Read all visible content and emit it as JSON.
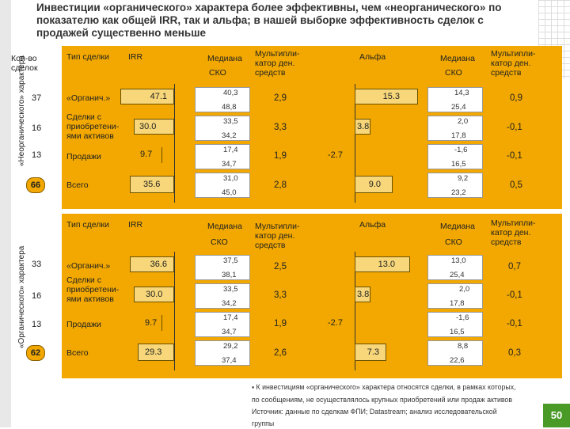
{
  "title": "Инвестиции «органического» характера более эффективны, чем «неорганического» по показателю как общей IRR, так и альфа; в нашей выборке эффективность сделок с продажей существенно меньше",
  "top_left_header": "Кол-во сделок",
  "columns": {
    "type": "Тип сделки",
    "irr": "IRR",
    "median": "Медиана",
    "sko": "СКО",
    "multiplier": "Мультипли-катор ден. средств",
    "alpha": "Альфа",
    "median2": "Медиана",
    "sko2": "СКО",
    "multiplier2": "Мультипли-катор ден. средств"
  },
  "sections": [
    {
      "side_label": "«Неорганического» характера",
      "rows": [
        {
          "count": "37",
          "type": "«Органич.»",
          "irr": "47.1",
          "median": "40,3",
          "sko": "48,8",
          "mult": "2,9",
          "alpha": "15.3",
          "a_median": "14,3",
          "a_sko": "25,4",
          "a_mult": "0,9"
        },
        {
          "count": "16",
          "type": "Сделки с приобретени-ями активов",
          "irr": "30.0",
          "median": "33,5",
          "sko": "34,2",
          "mult": "3,3",
          "alpha": "3.8",
          "a_median": "2,0",
          "a_sko": "17,8",
          "a_mult": "-0,1"
        },
        {
          "count": "13",
          "type": "Продажи",
          "irr": "9.7",
          "median": "17,4",
          "sko": "34,7",
          "mult": "1,9",
          "alpha": "-2.7",
          "a_median": "-1,6",
          "a_sko": "16,5",
          "a_mult": "-0,1"
        },
        {
          "count": "66",
          "type": "Всего",
          "irr": "35.6",
          "median": "31,0",
          "sko": "45,0",
          "mult": "2,8",
          "alpha": "9.0",
          "a_median": "9,2",
          "a_sko": "23,2",
          "a_mult": "0,5"
        }
      ]
    },
    {
      "side_label": "«Органического» характера",
      "rows": [
        {
          "count": "33",
          "type": "«Органич.»",
          "irr": "36.6",
          "median": "37,5",
          "sko": "38,1",
          "mult": "2,5",
          "alpha": "13.0",
          "a_median": "13,0",
          "a_sko": "25,4",
          "a_mult": "0,7"
        },
        {
          "count": "16",
          "type": "Сделки с приобретени-ями активов",
          "irr": "30.0",
          "median": "33,5",
          "sko": "34,2",
          "mult": "3,3",
          "alpha": "3.8",
          "a_median": "2,0",
          "a_sko": "17,8",
          "a_mult": "-0,1"
        },
        {
          "count": "13",
          "type": "Продажи",
          "irr": "9.7",
          "median": "17,4",
          "sko": "34,7",
          "mult": "1,9",
          "alpha": "-2.7",
          "a_median": "-1,6",
          "a_sko": "16,5",
          "a_mult": "-0,1"
        },
        {
          "count": "62",
          "type": "Всего",
          "irr": "29.3",
          "median": "29,2",
          "sko": "37,4",
          "mult": "2,6",
          "alpha": "7.3",
          "a_median": "8,8",
          "a_sko": "22,6",
          "a_mult": "0,3"
        }
      ]
    }
  ],
  "footnote": {
    "line1": "▪  К инвестициям «органического» характера относятся сделки, в рамках которых,",
    "line2": "по сообщениям, не осуществлялось крупных приобретений или продаж активов",
    "line3": "Источник: данные по сделкам ФПИ; Datastream; анализ исследовательской",
    "line4": "группы"
  },
  "page_number": "50",
  "colors": {
    "panel": "#f2a800",
    "bar": "#f7d77a",
    "page_badge": "#4a9a28"
  }
}
